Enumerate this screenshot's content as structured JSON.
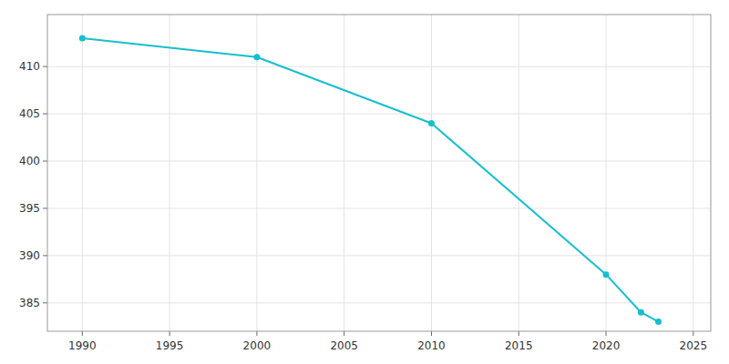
{
  "chart_data": {
    "type": "line",
    "x": [
      1990,
      2000,
      2010,
      2020,
      2022,
      2023
    ],
    "values": [
      413,
      411,
      404,
      388,
      384,
      383
    ],
    "color": "#17becf",
    "marker": "circle",
    "xlim": [
      1988,
      2026
    ],
    "ylim": [
      382,
      415.5
    ],
    "xticks": [
      1990,
      1995,
      2000,
      2005,
      2010,
      2015,
      2020,
      2025
    ],
    "yticks": [
      385,
      390,
      395,
      400,
      405,
      410
    ],
    "grid": true
  }
}
